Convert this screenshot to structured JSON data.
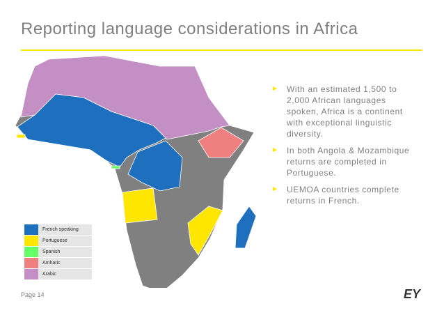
{
  "title": "Reporting language considerations in Africa",
  "bullets": [
    "With an estimated 1,500 to 2,000 African languages spoken, Africa is a continent with exceptional linguistic diversity.",
    "In both Angola & Mozambique returns are completed in Portuguese.",
    "UEMOA countries complete returns in French."
  ],
  "legend": {
    "items": [
      {
        "label": "French speaking",
        "color": "#1f6fbf"
      },
      {
        "label": "Portuguese",
        "color": "#ffe600"
      },
      {
        "label": "Spanish",
        "color": "#66ff66"
      },
      {
        "label": "Amharic",
        "color": "#f08080"
      },
      {
        "label": "Arabic",
        "color": "#c38fc4"
      }
    ]
  },
  "footer": {
    "page": "Page 14",
    "logo": "EY"
  }
}
